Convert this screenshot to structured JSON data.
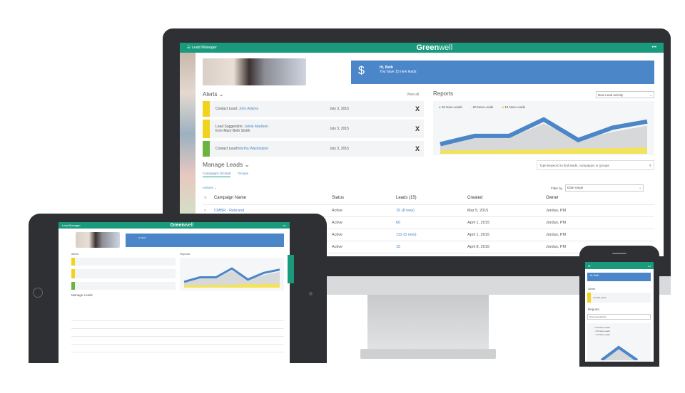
{
  "app": {
    "menu_label": "Lead Manager",
    "brand_bold": "Green",
    "brand_light": "well",
    "more_icon": "•••"
  },
  "welcome": {
    "greeting": "Hi, Beth",
    "message": "You have 15 new leads"
  },
  "alerts": {
    "title": "Alerts",
    "view_all": "View all",
    "items": [
      {
        "text": "Contact Lead:",
        "link": "John Adams",
        "date": "July 3, 2015",
        "color": "#f2d21b"
      },
      {
        "text": "Lead Suggestion:",
        "link": "Jamie Madison",
        "text2": "from Mary Beth Smith",
        "date": "July 3, 2015",
        "color": "#f2d21b"
      },
      {
        "text": "Contact Lead:",
        "link": "Martha Washington",
        "date": "July 3, 2015",
        "color": "#6cb33f"
      }
    ]
  },
  "reports": {
    "title": "Reports",
    "select": "New Lead activity",
    "legend": [
      "30 New Leads",
      "60 New Leads",
      "15 New Leads"
    ]
  },
  "chart_data": {
    "type": "area",
    "x": [
      1,
      2,
      3,
      4,
      5,
      6,
      7
    ],
    "series": [
      {
        "name": "30 New Leads",
        "values": [
          2,
          4,
          4,
          8,
          3,
          6,
          7.5
        ],
        "color": "#4a86c8"
      },
      {
        "name": "60 New Leads",
        "values": [
          1.5,
          3.5,
          3.5,
          7,
          3,
          5,
          6.5
        ],
        "color": "#d6d8da"
      },
      {
        "name": "15 New Leads",
        "values": [
          0.5,
          0.5,
          0.6,
          0.7,
          1,
          1,
          1.2
        ],
        "color": "#f2e35a"
      }
    ]
  },
  "manage": {
    "title": "Manage Leads",
    "tabs": [
      "Campaigns (5 total)",
      "Groups"
    ],
    "search_placeholder": "Type keyword to find leads, campaigns or groups",
    "actions": "Actions",
    "filter_label": "Filter by",
    "filter_value": "Date range",
    "columns": [
      "Campaign Name",
      "Status",
      "Leads (15)",
      "Created",
      "Owner"
    ],
    "rows": [
      [
        "CMBR - Rebrand",
        "Active",
        "15 (8 new)",
        "Mar 5, 2015",
        "Jordan, PM"
      ],
      [
        "",
        "Active",
        "60",
        "April 1, 2015",
        "Jordan, PM"
      ],
      [
        "",
        "Active",
        "112 (5 new)",
        "April 1, 2015",
        "Jordan, PM"
      ],
      [
        "",
        "Active",
        "15",
        "April 8, 2015",
        "Jordan, PM"
      ]
    ]
  }
}
